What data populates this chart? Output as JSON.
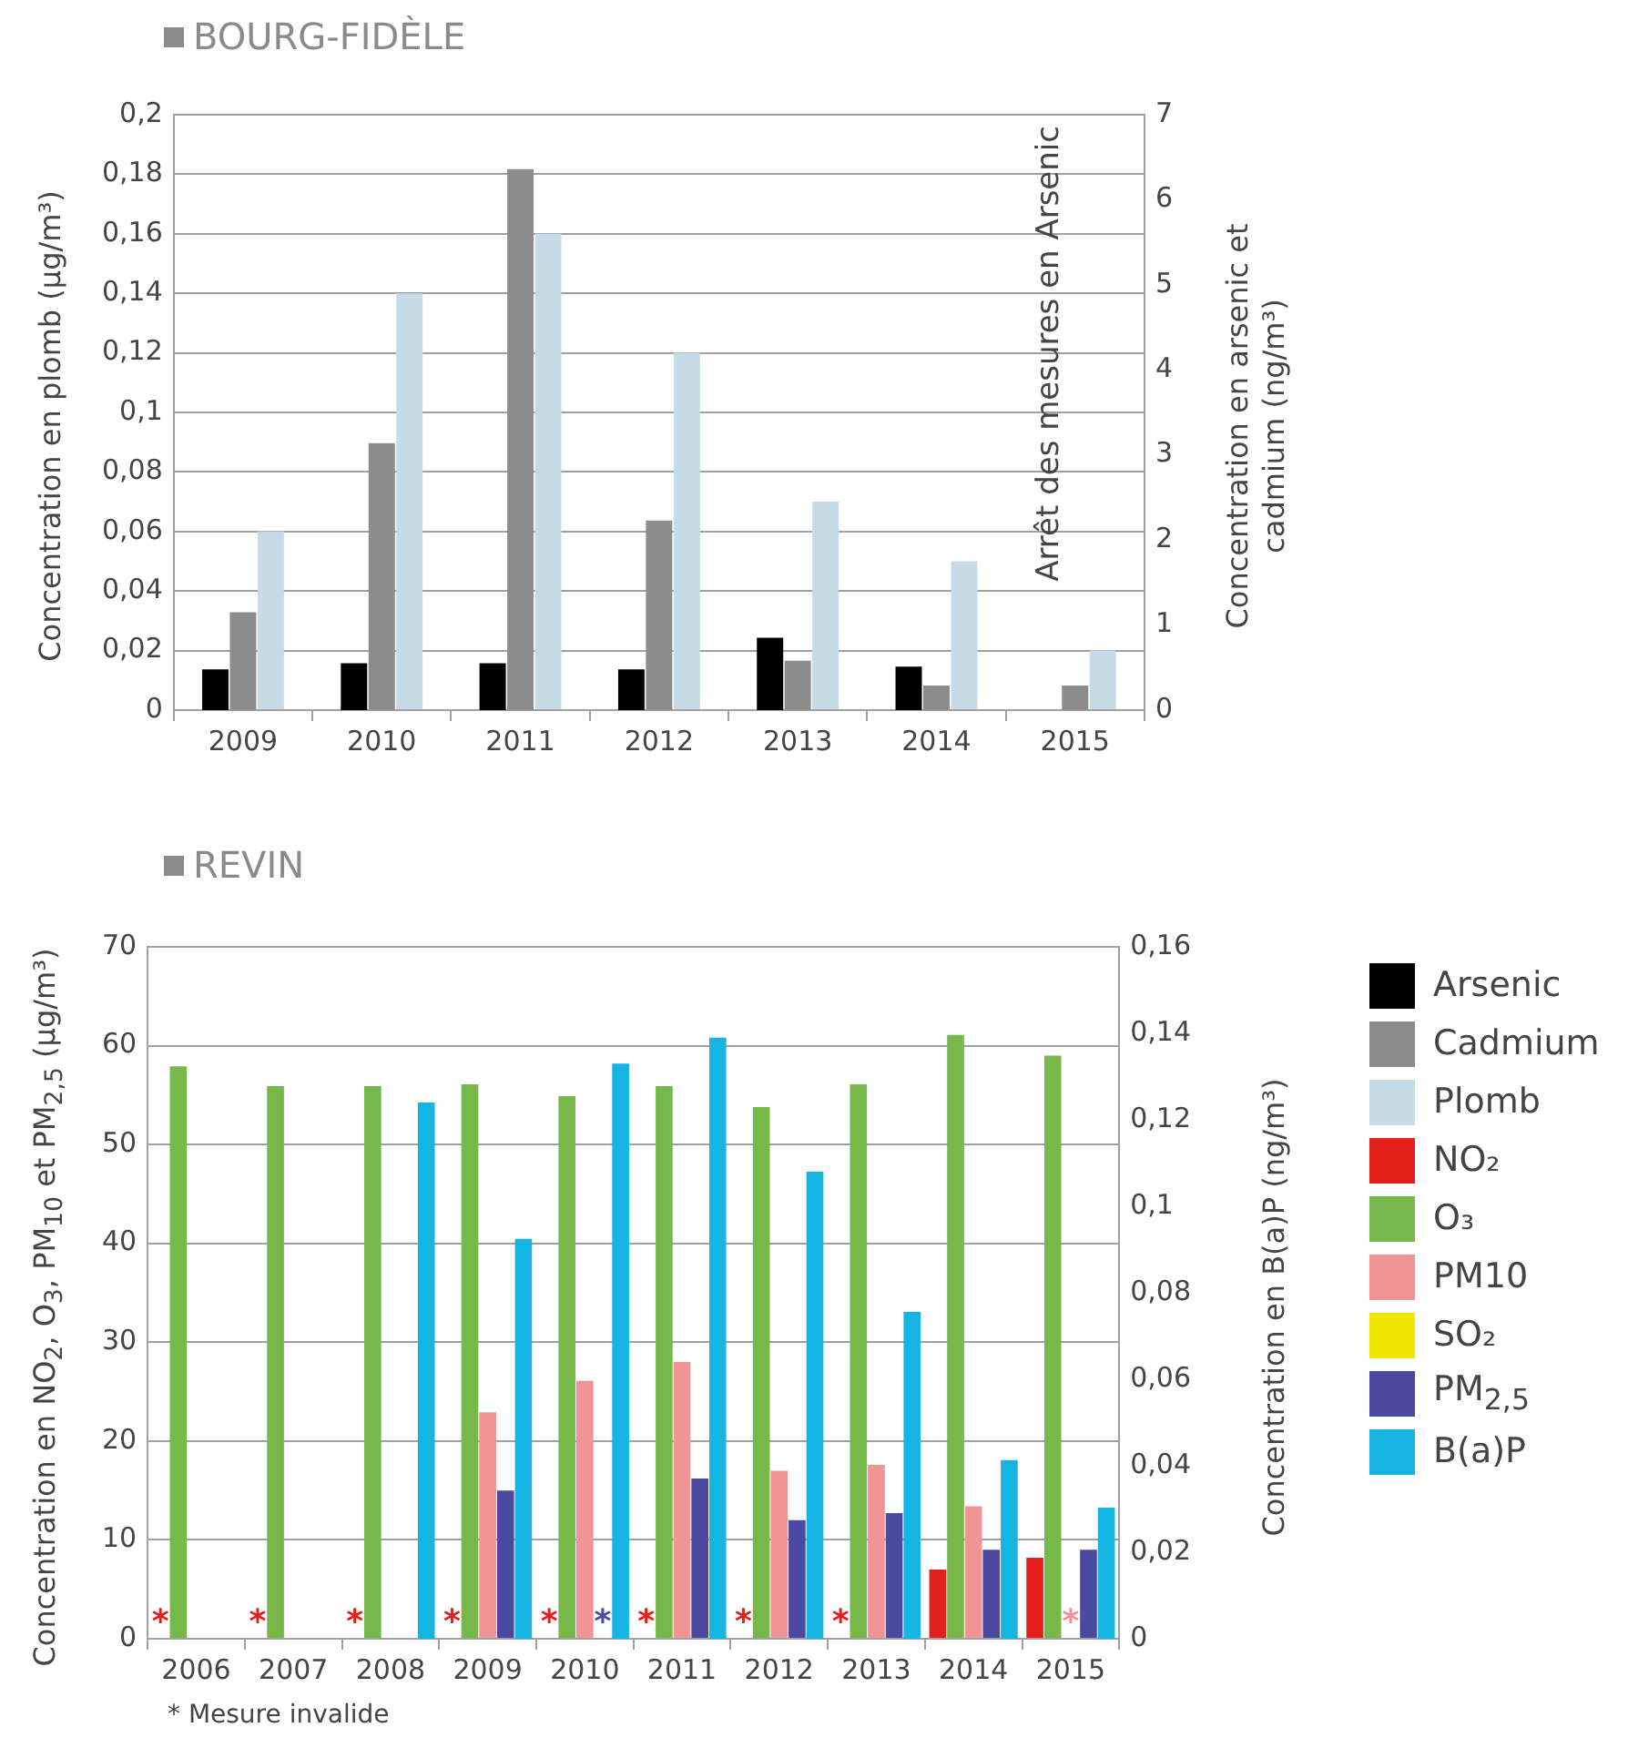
{
  "chart_data": [
    {
      "type": "bar",
      "title": "BOURG-FIDÈLE",
      "ylabel": "Concentration en plomb (µg/m³)",
      "y2label": "Concentration en arsenic et cadmium (ng/m³)",
      "annotations": [
        "Arrêt des mesures en Arsenic"
      ],
      "categories": [
        "2009",
        "2010",
        "2011",
        "2012",
        "2013",
        "2014",
        "2015"
      ],
      "series": [
        {
          "name": "Arsenic",
          "color": "#000000",
          "axis": "y2",
          "values": [
            0.48,
            0.55,
            0.55,
            0.48,
            0.85,
            0.51,
            null
          ]
        },
        {
          "name": "Cadmium",
          "color": "#8c8c8c",
          "axis": "y2",
          "values": [
            1.15,
            3.14,
            6.36,
            2.23,
            0.58,
            0.29,
            0.29
          ]
        },
        {
          "name": "Plomb",
          "color": "#c5dce8",
          "values": [
            0.06,
            0.14,
            0.16,
            0.12,
            0.07,
            0.05,
            0.02
          ]
        }
      ],
      "ylim": [
        0,
        0.2
      ],
      "yticks": [
        0,
        {
          "value": 0.02,
          "label": "0,02"
        },
        {
          "value": 0.04,
          "label": "0,04"
        },
        {
          "value": 0.06,
          "label": "0,06"
        },
        {
          "value": 0.08,
          "label": "0,08"
        },
        {
          "value": 0.1,
          "label": "0,1"
        },
        {
          "value": 0.12,
          "label": "0,12"
        },
        {
          "value": 0.14,
          "label": "0,14"
        },
        {
          "value": 0.16,
          "label": "0,16"
        },
        {
          "value": 0.18,
          "label": "0,18"
        },
        {
          "value": 0.2,
          "label": "0,2"
        }
      ],
      "y2lim": [
        0,
        7
      ],
      "y2ticks": [
        0,
        1,
        2,
        3,
        4,
        5,
        6,
        7
      ],
      "grid": "y",
      "legend": "right"
    },
    {
      "type": "bar",
      "title": "REVIN",
      "ylabel": "Concentration en NO$_{2}$, O$_{3}$, PM$_{10}$ et PM$_{2,5}$  (µg/m³)",
      "y2label": "Concentration en B(a)P (ng/m³)",
      "annotations": [
        "* Mesure invalide"
      ],
      "categories": [
        "2006",
        "2007",
        "2008",
        "2009",
        "2010",
        "2011",
        "2012",
        "2013",
        "2014",
        "2015"
      ],
      "series": [
        {
          "name": "NO₂",
          "color": "#e3201b",
          "values": [
            null,
            null,
            null,
            null,
            null,
            null,
            null,
            null,
            7.0,
            8.2
          ],
          "value_labels": [
            "*",
            "*",
            "*",
            "*",
            "*",
            "*",
            "*",
            "*",
            null,
            null
          ]
        },
        {
          "name": "O₃",
          "color": "#77b84a",
          "values": [
            57.9,
            55.9,
            55.9,
            56.1,
            54.9,
            55.9,
            53.8,
            56.1,
            61.1,
            59
          ]
        },
        {
          "name": "PM10",
          "color": "#f09496",
          "values": [
            null,
            null,
            null,
            22.9,
            26.1,
            28,
            17,
            17.6,
            13.4,
            null
          ],
          "value_labels": [
            null,
            null,
            null,
            null,
            null,
            null,
            null,
            null,
            null,
            "*"
          ]
        },
        {
          "name": "SO₂",
          "color": "#f2e600",
          "values": [
            null,
            null,
            null,
            null,
            null,
            null,
            null,
            null,
            null,
            null
          ]
        },
        {
          "name": "PM$_{2,5}$",
          "color": "#4b4aa0",
          "values": [
            null,
            null,
            null,
            15.0,
            null,
            16.2,
            12.0,
            12.7,
            9.0,
            9.0
          ],
          "value_labels": [
            null,
            null,
            null,
            null,
            "*",
            null,
            null,
            null,
            null,
            null
          ]
        },
        {
          "name": "B(a)P",
          "color": "#16b4e3",
          "axis": "y2",
          "values": [
            null,
            null,
            0.124,
            0.0925,
            0.133,
            0.139,
            0.108,
            0.0756,
            0.0413,
            0.0303
          ]
        }
      ],
      "ylim": [
        0,
        70
      ],
      "yticks": [
        0,
        10,
        20,
        30,
        40,
        50,
        60,
        70
      ],
      "y2lim": [
        0,
        0.16
      ],
      "y2ticks": [
        0,
        {
          "value": 0.02,
          "label": "0,02"
        },
        {
          "value": 0.04,
          "label": "0,04"
        },
        {
          "value": 0.06,
          "label": "0,06"
        },
        {
          "value": 0.08,
          "label": "0,08"
        },
        {
          "value": 0.1,
          "label": "0,1"
        },
        {
          "value": 0.12,
          "label": "0,12"
        },
        {
          "value": 0.14,
          "label": "0,14"
        },
        {
          "value": 0.16,
          "label": "0,16"
        }
      ],
      "grid": "y",
      "legend": "right"
    }
  ]
}
